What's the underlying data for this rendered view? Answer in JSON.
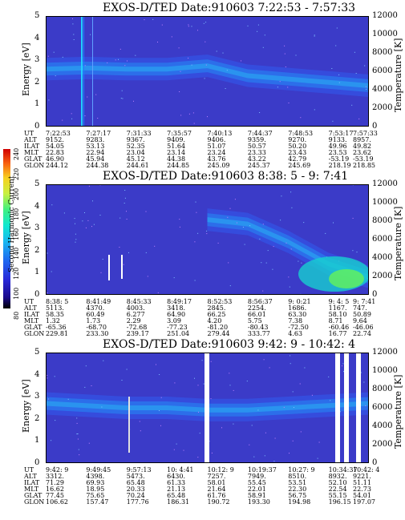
{
  "colorbar": {
    "title": "Second Harmonic Current",
    "ticks": [
      "240",
      "220",
      "200",
      "180",
      "160",
      "140",
      "120",
      "100",
      "80"
    ]
  },
  "panels": [
    {
      "title": "EXOS-D/TED   Date:910603  7:22:53 - 7:57:33",
      "ylabel_left": "Energy [eV]",
      "ylabel_right": "Temperature [K]",
      "yticks_left": [
        "5",
        "4",
        "3",
        "2",
        "1",
        "0"
      ],
      "yticks_right": [
        "12000",
        "10000",
        "8000",
        "6000",
        "4000",
        "2000",
        "0"
      ],
      "ephem_labels": [
        "UT",
        "ALT",
        "ILAT",
        "MLT",
        "GLAT",
        "GLON"
      ],
      "ephem": [
        [
          "7:22:53",
          "9152.",
          "54.05",
          "22.83",
          "46.90",
          "244.12"
        ],
        [
          "7:27:17",
          "9283.",
          "53.13",
          "22.94",
          "45.94",
          "244.38"
        ],
        [
          "7:31:33",
          "9367.",
          "52.35",
          "23.04",
          "45.12",
          "244.61"
        ],
        [
          "7:35:57",
          "9409.",
          "51.64",
          "23.14",
          "44.38",
          "244.85"
        ],
        [
          "7:40:13",
          "9406.",
          "51.07",
          "23.24",
          "43.76",
          "245.09"
        ],
        [
          "7:44:37",
          "9359.",
          "50.57",
          "23.33",
          "43.22",
          "245.37"
        ],
        [
          "7:48:53",
          "9270.",
          "50.20",
          "23.43",
          "42.79",
          "245.69"
        ],
        [
          "7:53:17",
          "9133.",
          "49.96",
          "23.53",
          "-53.19",
          "218.19"
        ],
        [
          "7:57:33",
          "8957.",
          "49.82",
          "23.62",
          "-53.19",
          "218.85"
        ]
      ]
    },
    {
      "title": "EXOS-D/TED   Date:910603  8:38: 5 - 9: 7:41",
      "ylabel_left": "Energy [eV]",
      "ylabel_right": "Temperature [K]",
      "yticks_left": [
        "5",
        "4",
        "3",
        "2",
        "1",
        "0"
      ],
      "yticks_right": [
        "12000",
        "10000",
        "8000",
        "6000",
        "4000",
        "2000",
        "0"
      ],
      "ephem_labels": [
        "UT",
        "ALT",
        "ILAT",
        "MLT",
        "GLAT",
        "GLON"
      ],
      "ephem": [
        [
          "8:38: 5",
          "5113.",
          "58.35",
          "1.32",
          "-65.36",
          "229.81"
        ],
        [
          "8:41:49",
          "4370.",
          "60.49",
          "1.73",
          "-68.70",
          "233.30"
        ],
        [
          "8:45:33",
          "4003.",
          "6.277",
          "2.29",
          "-72.68",
          "239.17"
        ],
        [
          "8:49:17",
          "3418.",
          "64.90",
          "3.09",
          "-77.23",
          "251.04"
        ],
        [
          "8:52:53",
          "2845.",
          "66.25",
          "4.20",
          "-81.20",
          "279.44"
        ],
        [
          "8:56:37",
          "2254.",
          "66.01",
          "5.75",
          "-80.43",
          "333.77"
        ],
        [
          "9: 0:21",
          "1686.",
          "63.30",
          "7.38",
          "-72.50",
          "4.63"
        ],
        [
          "9: 4: 5",
          "1167.",
          "58.10",
          "8.71",
          "-60.46",
          "16.77"
        ],
        [
          "9: 7:41",
          "747.",
          "50.89",
          "9.64",
          "-46.06",
          "22.74"
        ]
      ]
    },
    {
      "title": "EXOS-D/TED   Date:910603  9:42: 9 - 10:42: 4",
      "ylabel_left": "Energy [eV]",
      "ylabel_right": "Temperature [K]",
      "yticks_left": [
        "5",
        "4",
        "3",
        "2",
        "1",
        "0"
      ],
      "yticks_right": [
        "12000",
        "10000",
        "8000",
        "6000",
        "4000",
        "2000",
        "0"
      ],
      "ephem_labels": [
        "UT",
        "ALT",
        "ILAT",
        "MLT",
        "GLAT",
        "GLON"
      ],
      "ephem": [
        [
          "9:42: 9",
          "3312.",
          "71.29",
          "16.62",
          "77.45",
          "106.62"
        ],
        [
          "9:49:45",
          "4398.",
          "69.93",
          "18.95",
          "75.65",
          "157.47"
        ],
        [
          "9:57:13",
          "5473.",
          "65.48",
          "20.33",
          "70.24",
          "177.76"
        ],
        [
          "10: 4:41",
          "6430.",
          "61.33",
          "21.13",
          "65.48",
          "186.31"
        ],
        [
          "10:12: 9",
          "7257.",
          "58.01",
          "21.64",
          "61.76",
          "190.72"
        ],
        [
          "10:19:37",
          "7949.",
          "55.45",
          "22.01",
          "58.91",
          "193.30"
        ],
        [
          "10:27: 9",
          "8510.",
          "53.51",
          "22.30",
          "56.75",
          "194.98"
        ],
        [
          "10:34:37",
          "8932.",
          "52.10",
          "22.54",
          "55.15",
          "196.15"
        ],
        [
          "10:42: 4",
          "9221.",
          "51.11",
          "22.73",
          "54.01",
          "197.07"
        ]
      ]
    }
  ],
  "chart_data": [
    {
      "type": "heatmap",
      "title": "EXOS-D/TED   Date:910603  7:22:53 - 7:57:33",
      "xlabel": "UT",
      "ylabel": "Energy [eV]",
      "ylabel_right": "Temperature [K]",
      "ylim": [
        0,
        5
      ],
      "ylim_right": [
        0,
        12000
      ],
      "x": [
        "7:22:53",
        "7:27:17",
        "7:31:33",
        "7:35:57",
        "7:40:13",
        "7:44:37",
        "7:48:53",
        "7:53:17",
        "7:57:33"
      ],
      "ridge_energy_eV": [
        2.6,
        2.65,
        2.6,
        2.6,
        2.75,
        2.3,
        2.15,
        2.0,
        1.85
      ],
      "colorbar_title": "Second Harmonic Current",
      "colorbar_range": [
        80,
        240
      ]
    },
    {
      "type": "heatmap",
      "title": "EXOS-D/TED   Date:910603  8:38: 5 - 9: 7:41",
      "xlabel": "UT",
      "ylabel": "Energy [eV]",
      "ylabel_right": "Temperature [K]",
      "ylim": [
        0,
        5
      ],
      "ylim_right": [
        0,
        12000
      ],
      "x": [
        "8:38: 5",
        "8:41:49",
        "8:45:33",
        "8:49:17",
        "8:52:53",
        "8:56:37",
        "9: 0:21",
        "9: 4: 5",
        "9: 7:41"
      ],
      "ridge_energy_eV": [
        null,
        null,
        null,
        null,
        3.4,
        3.2,
        2.4,
        1.4,
        0.8
      ],
      "colorbar_title": "Second Harmonic Current",
      "colorbar_range": [
        80,
        240
      ]
    },
    {
      "type": "heatmap",
      "title": "EXOS-D/TED   Date:910603  9:42: 9 - 10:42: 4",
      "xlabel": "UT",
      "ylabel": "Energy [eV]",
      "ylabel_right": "Temperature [K]",
      "ylim": [
        0,
        5
      ],
      "ylim_right": [
        0,
        12000
      ],
      "x": [
        "9:42: 9",
        "9:49:45",
        "9:57:13",
        "10: 4:41",
        "10:12: 9",
        "10:19:37",
        "10:27: 9",
        "10:34:37",
        "10:42: 4"
      ],
      "ridge_energy_eV": [
        2.7,
        2.6,
        2.5,
        2.5,
        2.4,
        2.4,
        2.5,
        2.6,
        2.7
      ],
      "colorbar_title": "Second Harmonic Current",
      "colorbar_range": [
        80,
        240
      ]
    }
  ]
}
